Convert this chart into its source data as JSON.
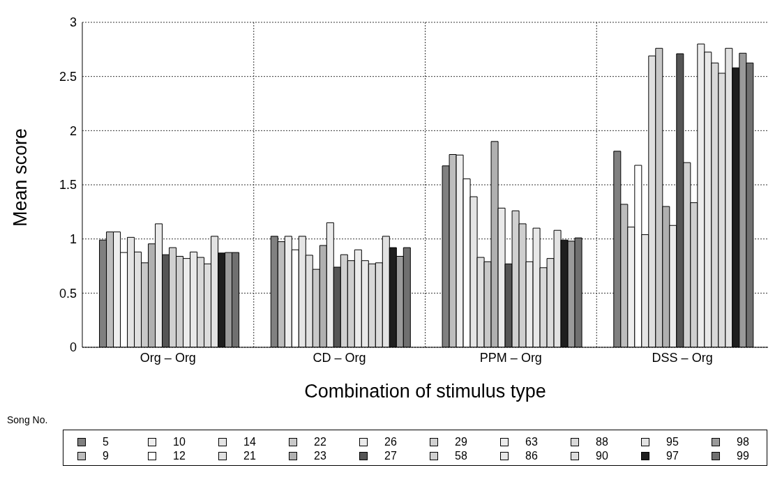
{
  "chart_data": {
    "type": "bar",
    "xlabel": "Combination of stimulus type",
    "ylabel": "Mean score",
    "legend_title": "Song No.",
    "categories": [
      "Org – Org",
      "CD – Org",
      "PPM – Org",
      "DSS – Org"
    ],
    "ylim": [
      0,
      3
    ],
    "yticks": [
      0,
      0.5,
      1,
      1.5,
      2,
      2.5,
      3
    ],
    "grid": true,
    "legend": "bottom",
    "series": [
      {
        "name": "5",
        "color": "#808080",
        "values": [
          0.99,
          1.025,
          1.675,
          1.81
        ]
      },
      {
        "name": "9",
        "color": "#bdbdbd",
        "values": [
          1.065,
          0.975,
          1.78,
          1.32
        ]
      },
      {
        "name": "10",
        "color": "#eeeeee",
        "values": [
          1.065,
          1.025,
          1.775,
          1.11
        ]
      },
      {
        "name": "12",
        "color": "#ffffff",
        "values": [
          0.875,
          0.9,
          1.555,
          1.68
        ]
      },
      {
        "name": "14",
        "color": "#e4e4e4",
        "values": [
          1.015,
          1.025,
          1.39,
          1.04
        ]
      },
      {
        "name": "21",
        "color": "#e0e0e0",
        "values": [
          0.88,
          0.85,
          0.83,
          2.69
        ]
      },
      {
        "name": "22",
        "color": "#c8c8c8",
        "values": [
          0.78,
          0.72,
          0.79,
          2.76
        ]
      },
      {
        "name": "23",
        "color": "#b0b0b0",
        "values": [
          0.955,
          0.94,
          1.9,
          1.3
        ]
      },
      {
        "name": "26",
        "color": "#eaeaea",
        "values": [
          1.14,
          1.15,
          1.285,
          1.125
        ]
      },
      {
        "name": "27",
        "color": "#555555",
        "values": [
          0.855,
          0.74,
          0.77,
          2.71
        ]
      },
      {
        "name": "29",
        "color": "#d0d0d0",
        "values": [
          0.92,
          0.855,
          1.26,
          1.705
        ]
      },
      {
        "name": "58",
        "color": "#cfcfcf",
        "values": [
          0.84,
          0.8,
          1.14,
          1.335
        ]
      },
      {
        "name": "63",
        "color": "#ececec",
        "values": [
          0.82,
          0.9,
          0.79,
          2.8
        ]
      },
      {
        "name": "86",
        "color": "#e8e8e8",
        "values": [
          0.88,
          0.8,
          1.1,
          2.725
        ]
      },
      {
        "name": "88",
        "color": "#d8d8d8",
        "values": [
          0.83,
          0.77,
          0.735,
          2.625
        ]
      },
      {
        "name": "90",
        "color": "#dcdcdc",
        "values": [
          0.77,
          0.78,
          0.82,
          2.53
        ]
      },
      {
        "name": "95",
        "color": "#e2e2e2",
        "values": [
          1.025,
          1.025,
          1.08,
          2.76
        ]
      },
      {
        "name": "97",
        "color": "#1e1e1e",
        "values": [
          0.87,
          0.92,
          0.99,
          2.58
        ]
      },
      {
        "name": "98",
        "color": "#9a9a9a",
        "values": [
          0.875,
          0.84,
          0.98,
          2.715
        ]
      },
      {
        "name": "99",
        "color": "#707070",
        "values": [
          0.875,
          0.92,
          1.01,
          2.625
        ]
      }
    ]
  }
}
